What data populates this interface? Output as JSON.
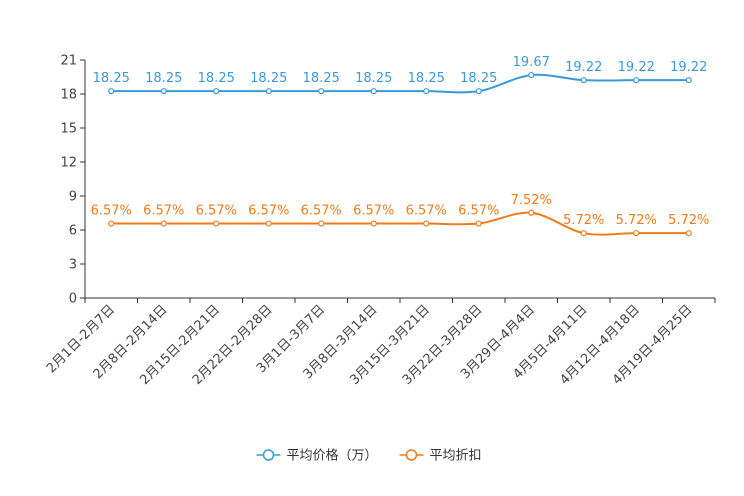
{
  "chart_data": {
    "type": "line",
    "title": "",
    "xlabel": "",
    "ylabel": "",
    "ylim": [
      0,
      21
    ],
    "yticks": [
      0,
      3,
      6,
      9,
      12,
      15,
      18,
      21
    ],
    "categories": [
      "2月1日-2月7日",
      "2月8日-2月14日",
      "2月15日-2月21日",
      "2月22日-2月28日",
      "3月1日-3月7日",
      "3月8日-3月14日",
      "3月15日-3月21日",
      "3月22日-3月28日",
      "3月29日-4月4日",
      "4月5日-4月11日",
      "4月12日-4月18日",
      "4月19日-4月25日"
    ],
    "series": [
      {
        "name": "平均价格（万）",
        "color": "#3a9ad9",
        "values": [
          18.25,
          18.25,
          18.25,
          18.25,
          18.25,
          18.25,
          18.25,
          18.25,
          19.67,
          19.22,
          19.22,
          19.22
        ],
        "labels": [
          "18.25",
          "18.25",
          "18.25",
          "18.25",
          "18.25",
          "18.25",
          "18.25",
          "18.25",
          "19.67",
          "19.22",
          "19.22",
          "19.22"
        ]
      },
      {
        "name": "平均折扣",
        "color": "#f07b1a",
        "values": [
          6.57,
          6.57,
          6.57,
          6.57,
          6.57,
          6.57,
          6.57,
          6.57,
          7.52,
          5.72,
          5.72,
          5.72
        ],
        "labels": [
          "6.57%",
          "6.57%",
          "6.57%",
          "6.57%",
          "6.57%",
          "6.57%",
          "6.57%",
          "6.57%",
          "7.52%",
          "5.72%",
          "5.72%",
          "5.72%"
        ]
      }
    ],
    "legend": "bottom"
  }
}
